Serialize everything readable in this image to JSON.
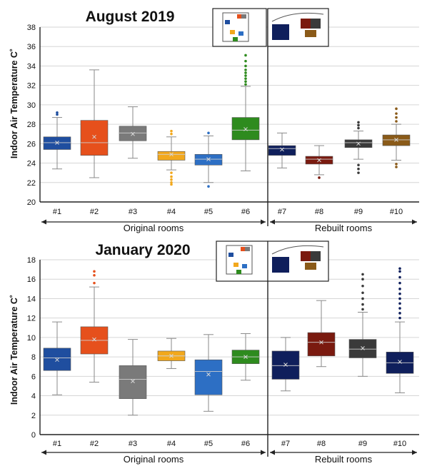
{
  "chart_data": [
    {
      "type": "box",
      "title": "August 2019",
      "ylabel": "Indoor Air Temperature C˚",
      "ylim": [
        20,
        38
      ],
      "yticks": [
        20,
        22,
        24,
        26,
        28,
        30,
        32,
        34,
        36,
        38
      ],
      "grid": true,
      "groups": [
        {
          "label": "Original rooms",
          "categories": [
            "#1",
            "#2",
            "#3",
            "#4",
            "#5",
            "#6"
          ]
        },
        {
          "label": "Rebuilt rooms",
          "categories": [
            "#7",
            "#8",
            "#9",
            "#10"
          ]
        }
      ],
      "boxes": [
        {
          "label": "#1",
          "color": "#1f4e9f",
          "min": 23.4,
          "q1": 25.4,
          "median": 26.1,
          "q3": 26.7,
          "max": 28.7,
          "mean": 26.1,
          "outliers": [
            29.0,
            29.2
          ]
        },
        {
          "label": "#2",
          "color": "#e6501c",
          "min": 22.5,
          "q1": 24.8,
          "median": 26.1,
          "q3": 28.4,
          "max": 33.6,
          "mean": 26.7,
          "outliers": []
        },
        {
          "label": "#3",
          "color": "#7a7a7a",
          "min": 24.5,
          "q1": 26.3,
          "median": 27.1,
          "q3": 27.8,
          "max": 29.8,
          "mean": 27.0,
          "outliers": []
        },
        {
          "label": "#4",
          "color": "#f2a81d",
          "min": 23.3,
          "q1": 24.3,
          "median": 24.9,
          "q3": 25.2,
          "max": 26.7,
          "mean": 24.9,
          "outliers": [
            27.0,
            27.3,
            23.0,
            22.6,
            22.3,
            22.0,
            21.8
          ]
        },
        {
          "label": "#5",
          "color": "#2d6fc4",
          "min": 22.0,
          "q1": 23.8,
          "median": 24.4,
          "q3": 24.9,
          "max": 26.8,
          "mean": 24.4,
          "outliers": [
            27.1,
            21.6
          ]
        },
        {
          "label": "#6",
          "color": "#2e8b1e",
          "min": 23.2,
          "q1": 26.4,
          "median": 27.4,
          "q3": 28.7,
          "max": 31.9,
          "mean": 27.5,
          "outliers": [
            32.1,
            32.4,
            32.7,
            33.0,
            33.3,
            33.6,
            34.0,
            34.5,
            35.1
          ]
        },
        {
          "label": "#7",
          "color": "#0f1f5c",
          "min": 23.5,
          "q1": 24.8,
          "median": 25.5,
          "q3": 25.8,
          "max": 27.1,
          "mean": 25.4,
          "outliers": []
        },
        {
          "label": "#8",
          "color": "#7a1a0f",
          "min": 22.8,
          "q1": 23.9,
          "median": 24.4,
          "q3": 24.7,
          "max": 25.8,
          "mean": 24.3,
          "outliers": [
            22.5
          ]
        },
        {
          "label": "#9",
          "color": "#3a3a3a",
          "min": 24.4,
          "q1": 25.6,
          "median": 26.1,
          "q3": 26.4,
          "max": 27.3,
          "mean": 26.0,
          "outliers": [
            27.6,
            27.9,
            28.2,
            23.8,
            23.4,
            23.0
          ]
        },
        {
          "label": "#10",
          "color": "#8a5a18",
          "min": 24.3,
          "q1": 25.8,
          "median": 26.4,
          "q3": 26.9,
          "max": 28.0,
          "mean": 26.4,
          "outliers": [
            28.3,
            28.7,
            29.1,
            29.6,
            23.9,
            23.6
          ]
        }
      ]
    },
    {
      "type": "box",
      "title": "January 2020",
      "ylabel": "Indoor Air Temperature C˚",
      "ylim": [
        0,
        18
      ],
      "yticks": [
        0,
        2,
        4,
        6,
        8,
        10,
        12,
        14,
        16,
        18
      ],
      "grid": true,
      "groups": [
        {
          "label": "Original rooms",
          "categories": [
            "#1",
            "#2",
            "#3",
            "#4",
            "#5",
            "#6"
          ]
        },
        {
          "label": "Rebuilt rooms",
          "categories": [
            "#7",
            "#8",
            "#9",
            "#10"
          ]
        }
      ],
      "boxes": [
        {
          "label": "#1",
          "color": "#1f4e9f",
          "min": 4.1,
          "q1": 6.6,
          "median": 7.9,
          "q3": 8.9,
          "max": 11.6,
          "mean": 7.7,
          "outliers": []
        },
        {
          "label": "#2",
          "color": "#e6501c",
          "min": 5.4,
          "q1": 8.3,
          "median": 9.7,
          "q3": 11.1,
          "max": 15.2,
          "mean": 9.8,
          "outliers": [
            15.6,
            16.4,
            16.8
          ]
        },
        {
          "label": "#3",
          "color": "#7a7a7a",
          "min": 2.0,
          "q1": 3.7,
          "median": 5.7,
          "q3": 7.1,
          "max": 9.8,
          "mean": 5.5,
          "outliers": []
        },
        {
          "label": "#4",
          "color": "#f2a81d",
          "min": 6.8,
          "q1": 7.6,
          "median": 8.1,
          "q3": 8.6,
          "max": 9.9,
          "mean": 8.1,
          "outliers": []
        },
        {
          "label": "#5",
          "color": "#2d6fc4",
          "min": 2.4,
          "q1": 4.1,
          "median": 6.5,
          "q3": 7.7,
          "max": 10.3,
          "mean": 6.2,
          "outliers": []
        },
        {
          "label": "#6",
          "color": "#2e8b1e",
          "min": 5.6,
          "q1": 7.3,
          "median": 8.0,
          "q3": 8.7,
          "max": 10.4,
          "mean": 8.0,
          "outliers": []
        },
        {
          "label": "#7",
          "color": "#0f1f5c",
          "min": 4.5,
          "q1": 5.7,
          "median": 7.1,
          "q3": 8.6,
          "max": 10.0,
          "mean": 7.2,
          "outliers": []
        },
        {
          "label": "#8",
          "color": "#7a1a0f",
          "min": 7.0,
          "q1": 8.1,
          "median": 9.5,
          "q3": 10.5,
          "max": 13.8,
          "mean": 9.5,
          "outliers": []
        },
        {
          "label": "#9",
          "color": "#3a3a3a",
          "min": 6.0,
          "q1": 7.9,
          "median": 8.8,
          "q3": 9.8,
          "max": 12.6,
          "mean": 8.9,
          "outliers": [
            12.9,
            13.4,
            14.0,
            14.6,
            15.3,
            16.0,
            16.5
          ]
        },
        {
          "label": "#10",
          "color": "#0f1f5c",
          "min": 4.3,
          "q1": 6.3,
          "median": 7.4,
          "q3": 8.5,
          "max": 11.6,
          "mean": 7.5,
          "outliers": [
            12.0,
            12.5,
            13.0,
            13.5,
            14.0,
            14.5,
            15.0,
            15.6,
            16.2,
            16.8,
            17.1
          ]
        }
      ]
    }
  ]
}
